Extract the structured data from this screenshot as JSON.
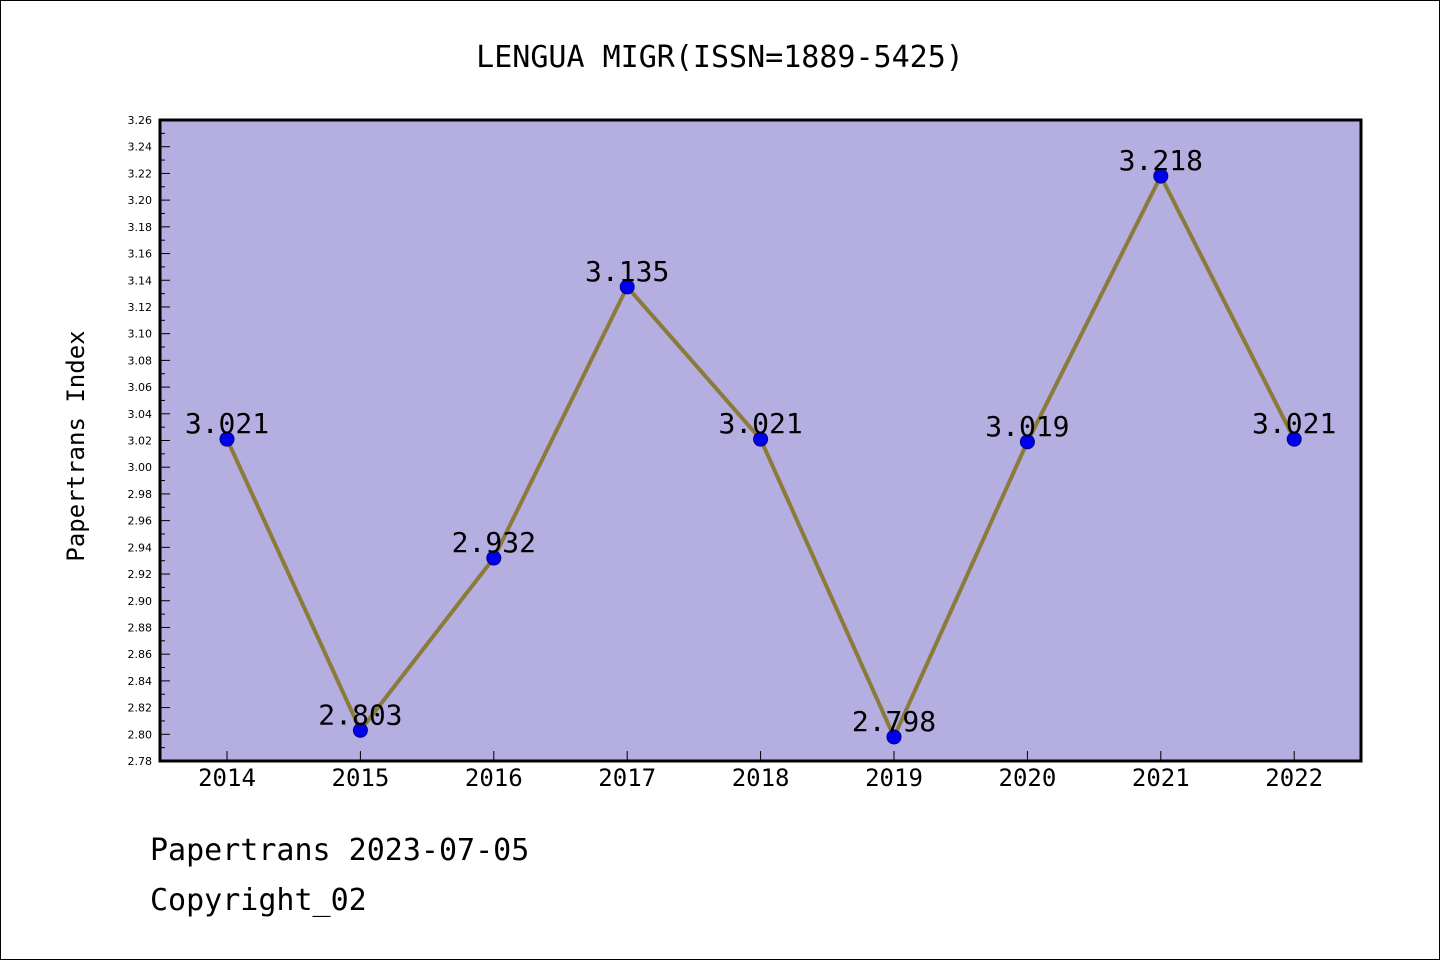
{
  "chart_data": {
    "type": "line",
    "title": "LENGUA MIGR(ISSN=1889-5425)",
    "xlabel": "",
    "ylabel": "Papertrans Index",
    "categories": [
      "2014",
      "2015",
      "2016",
      "2017",
      "2018",
      "2019",
      "2020",
      "2021",
      "2022"
    ],
    "series": [
      {
        "values": [
          3.021,
          2.803,
          2.932,
          3.135,
          3.021,
          2.798,
          3.019,
          3.218,
          3.021
        ]
      }
    ],
    "data_labels": [
      "3.021",
      "2.803",
      "2.932",
      "3.135",
      "3.021",
      "2.798",
      "3.019",
      "3.218",
      "3.021"
    ],
    "ylim": [
      2.78,
      3.26
    ],
    "yticks": [
      "2.78",
      "2.80",
      "2.82",
      "2.84",
      "2.86",
      "2.88",
      "2.90",
      "2.92",
      "2.94",
      "2.96",
      "2.98",
      "3.00",
      "3.02",
      "3.04",
      "3.06",
      "3.08",
      "3.10",
      "3.12",
      "3.14",
      "3.16",
      "3.18",
      "3.20",
      "3.22",
      "3.24",
      "3.26"
    ],
    "grid": false,
    "legend": "none",
    "colors": {
      "plot_background": "#b4aee1",
      "line": "#8b7b3a",
      "marker": "#0000ee"
    }
  },
  "footer": {
    "line1": "Papertrans 2023-07-05",
    "line2": "Copyright_02"
  }
}
